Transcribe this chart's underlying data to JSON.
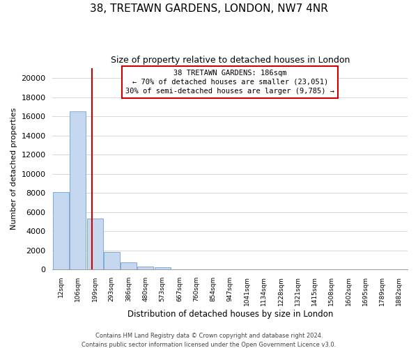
{
  "title": "38, TRETAWN GARDENS, LONDON, NW7 4NR",
  "subtitle": "Size of property relative to detached houses in London",
  "xlabel": "Distribution of detached houses by size in London",
  "ylabel": "Number of detached properties",
  "bar_color": "#c5d8f0",
  "bar_edge_color": "#7badd4",
  "categories": [
    "12sqm",
    "106sqm",
    "199sqm",
    "293sqm",
    "386sqm",
    "480sqm",
    "573sqm",
    "667sqm",
    "760sqm",
    "854sqm",
    "947sqm",
    "1041sqm",
    "1134sqm",
    "1228sqm",
    "1321sqm",
    "1415sqm",
    "1508sqm",
    "1602sqm",
    "1695sqm",
    "1789sqm",
    "1882sqm"
  ],
  "values": [
    8100,
    16500,
    5300,
    1800,
    750,
    300,
    200,
    0,
    0,
    0,
    0,
    0,
    0,
    0,
    0,
    0,
    0,
    0,
    0,
    0,
    0
  ],
  "ylim": [
    0,
    21000
  ],
  "yticks": [
    0,
    2000,
    4000,
    6000,
    8000,
    10000,
    12000,
    14000,
    16000,
    18000,
    20000
  ],
  "property_line_x": 1.82,
  "property_label": "38 TRETAWN GARDENS: 186sqm",
  "annotation_line1": "← 70% of detached houses are smaller (23,051)",
  "annotation_line2": "30% of semi-detached houses are larger (9,785) →",
  "annotation_box_facecolor": "#ffffff",
  "annotation_box_edgecolor": "#cc0000",
  "line_color": "#cc0000",
  "footer1": "Contains HM Land Registry data © Crown copyright and database right 2024.",
  "footer2": "Contains public sector information licensed under the Open Government Licence v3.0.",
  "bg_color": "#ffffff",
  "grid_color": "#d0d0d0",
  "title_fontsize": 11,
  "subtitle_fontsize": 9,
  "ylabel_fontsize": 8,
  "xlabel_fontsize": 8.5,
  "tick_fontsize": 8,
  "xtick_fontsize": 6.5,
  "annotation_fontsize": 7.5,
  "footer_fontsize": 6
}
